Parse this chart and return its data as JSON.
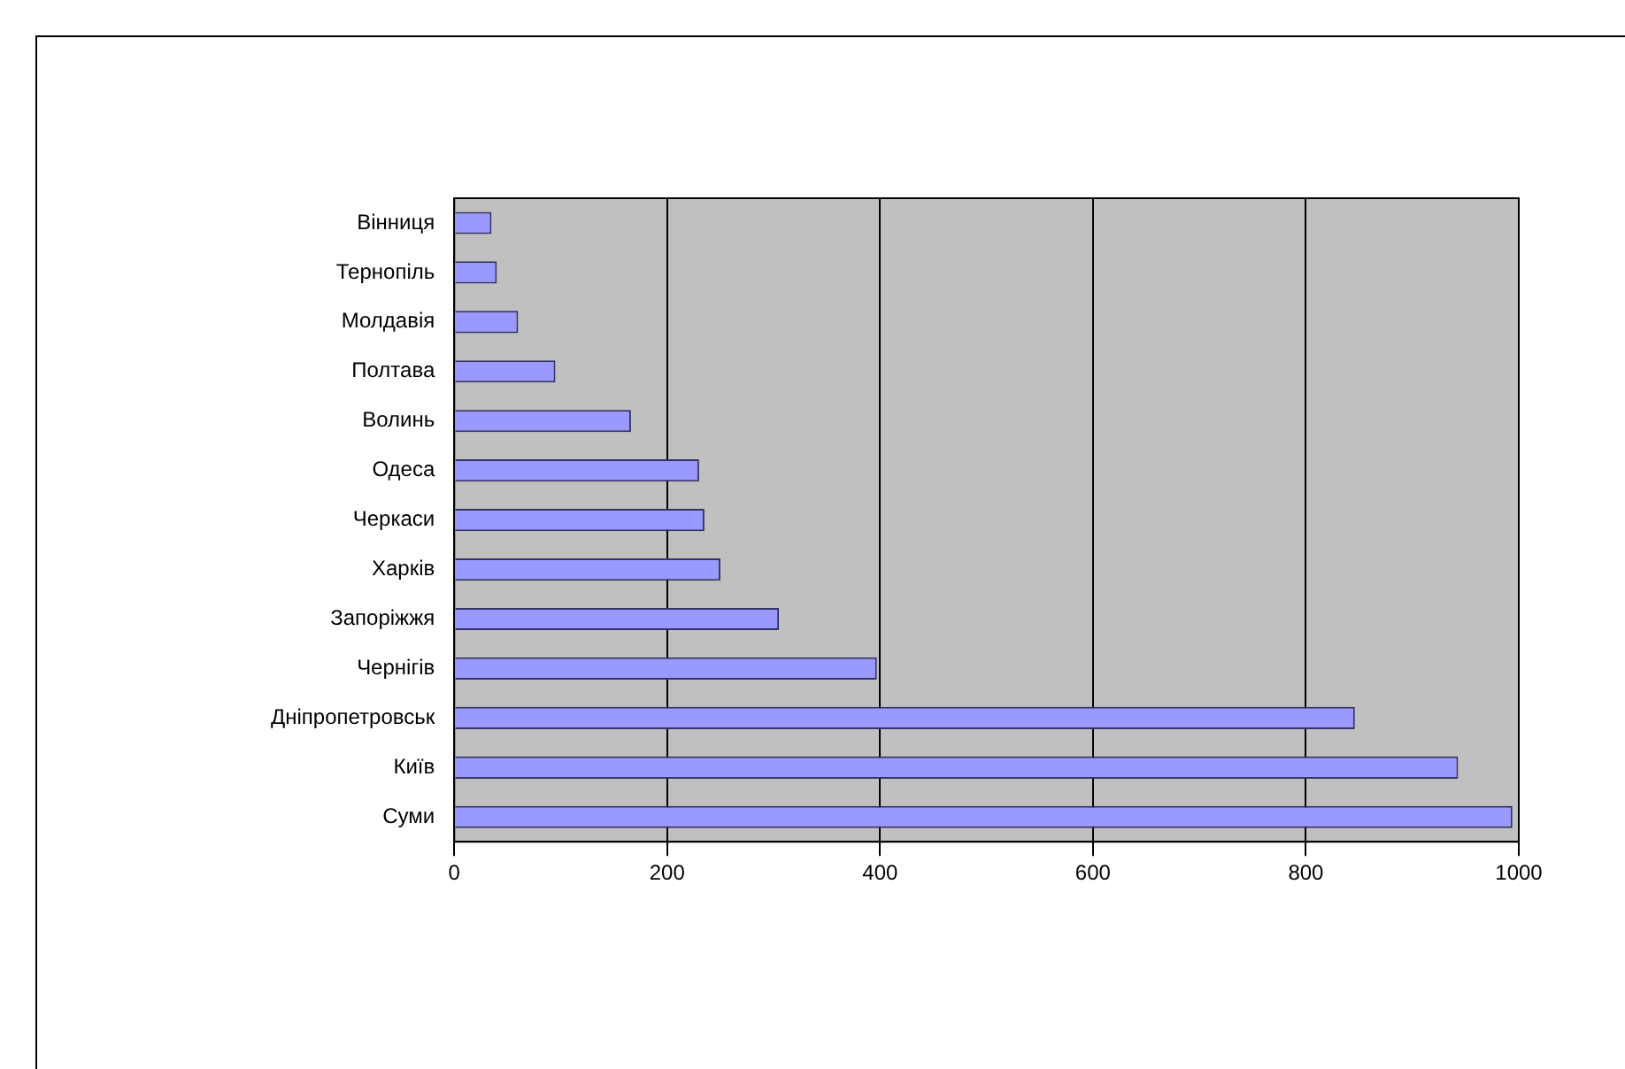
{
  "chart_data": {
    "type": "bar",
    "orientation": "horizontal",
    "categories": [
      "Вінниця",
      "Тернопіль",
      "Молдавія",
      "Полтава",
      "Волинь",
      "Одеса",
      "Черкаси",
      "Харків",
      "Запоріжжя",
      "Чернігів",
      "Дніпропетровськ",
      "Київ",
      "Суми"
    ],
    "values": [
      35,
      40,
      60,
      95,
      166,
      230,
      235,
      250,
      305,
      397,
      846,
      943,
      994
    ],
    "color": "#9999ff",
    "xlim": [
      0,
      1000
    ],
    "xticks": [
      0,
      200,
      400,
      600,
      800,
      1000
    ],
    "grid": "x",
    "legend": false
  }
}
